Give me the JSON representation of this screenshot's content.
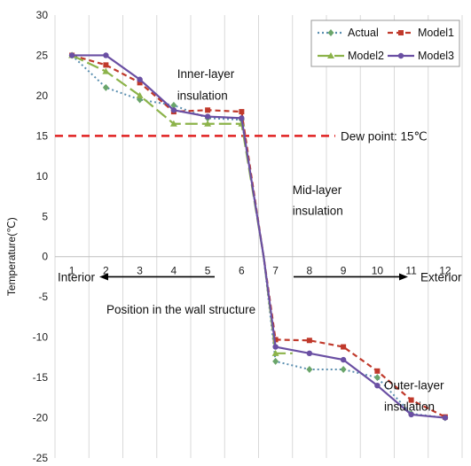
{
  "chart_data": {
    "type": "line",
    "ylabel": "Temperature(℃)",
    "xlabel": "Position in the wall structure",
    "ylim": [
      -25,
      30
    ],
    "yticks": [
      -25,
      -20,
      -15,
      -10,
      -5,
      0,
      5,
      10,
      15,
      20,
      25,
      30
    ],
    "xlim": [
      0.5,
      12.5
    ],
    "xticks": [
      1,
      2,
      3,
      4,
      5,
      6,
      7,
      8,
      9,
      10,
      11,
      12
    ],
    "grid": "vertical",
    "legend_position": "top-right",
    "series": [
      {
        "name": "Actual",
        "color": "#5b8fb0",
        "marker_color": "#6aa56a",
        "style": "dotted",
        "marker": "diamond",
        "x": [
          1,
          2,
          3,
          4,
          5,
          6,
          6.65,
          7,
          8,
          9,
          10,
          11,
          12
        ],
        "y": [
          25,
          21,
          19.5,
          18.8,
          17.2,
          17,
          0,
          -13,
          -14,
          -14,
          -15,
          -19.5,
          -20
        ]
      },
      {
        "name": "Model1",
        "color": "#c0392b",
        "style": "dashed",
        "marker": "square",
        "x": [
          1,
          2,
          3,
          4,
          5,
          6,
          6.65,
          7,
          8,
          9,
          10,
          11,
          12
        ],
        "y": [
          25,
          23.8,
          21.6,
          18,
          18.2,
          18,
          0,
          -10.3,
          -10.4,
          -11.2,
          -14.2,
          -17.8,
          -19.9
        ]
      },
      {
        "name": "Model2",
        "color": "#8cb34a",
        "style": "longdash",
        "marker": "triangle",
        "x": [
          1,
          2,
          3,
          4,
          5,
          6,
          6.65,
          7,
          7.5
        ],
        "y": [
          25,
          23,
          20,
          16.5,
          16.5,
          16.5,
          0,
          -12,
          -12
        ]
      },
      {
        "name": "Model3",
        "color": "#6a4fa3",
        "style": "solid",
        "marker": "circle",
        "x": [
          1,
          2,
          3,
          4,
          5,
          6,
          6.65,
          7,
          8,
          9,
          10,
          11,
          12
        ],
        "y": [
          25,
          25,
          22,
          18.2,
          17.4,
          17.2,
          0,
          -11.2,
          -12,
          -12.8,
          -16,
          -19.6,
          -20
        ]
      }
    ],
    "reference_line": {
      "y": 15,
      "label": "Dew point: 15℃",
      "color": "#e02020"
    },
    "annotations": [
      {
        "text": "Inner-layer",
        "x": 4.1,
        "y": 22.2
      },
      {
        "text": "insulation",
        "x": 4.1,
        "y": 19.5
      },
      {
        "text": "Mid-layer",
        "x": 7.5,
        "y": 7.8
      },
      {
        "text": "insulation",
        "x": 7.5,
        "y": 5.2
      },
      {
        "text": "Outer-layer",
        "x": 10.2,
        "y": -16.5
      },
      {
        "text": "insulation",
        "x": 10.2,
        "y": -19.1
      }
    ],
    "direction_labels": {
      "interior": "Interior",
      "exterior": "Exterior"
    }
  }
}
